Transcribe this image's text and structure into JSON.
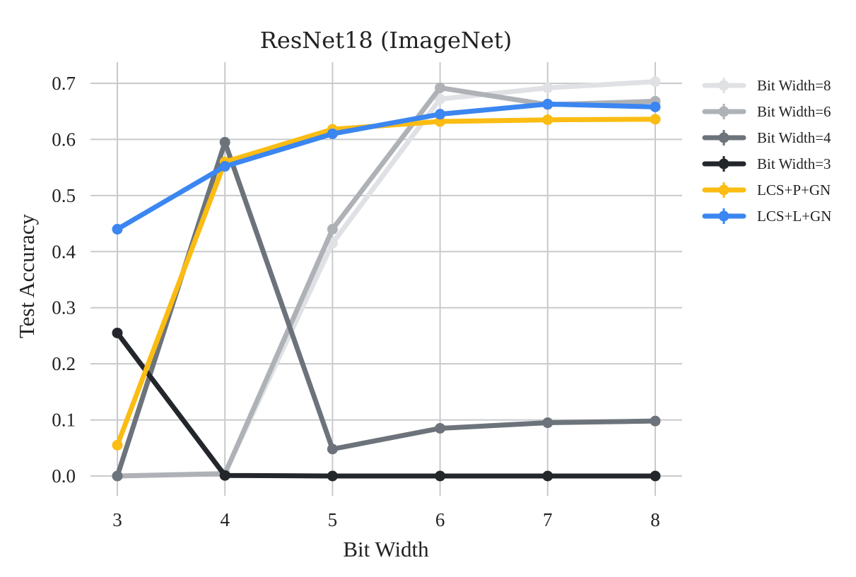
{
  "chart_data": {
    "type": "line",
    "title": "ResNet18 (ImageNet)",
    "xlabel": "Bit Width",
    "ylabel": "Test Accuracy",
    "x": [
      3,
      4,
      5,
      6,
      7,
      8
    ],
    "xticks": [
      "3",
      "4",
      "5",
      "6",
      "7",
      "8"
    ],
    "yticks": [
      "0.0",
      "0.1",
      "0.2",
      "0.3",
      "0.4",
      "0.5",
      "0.6",
      "0.7"
    ],
    "xlim": [
      3,
      8
    ],
    "ylim": [
      0,
      0.7
    ],
    "grid": true,
    "legend_position": "right",
    "series": [
      {
        "name": "Bit Width=8",
        "color": "#dfe1e4",
        "values": [
          0.0,
          0.005,
          0.415,
          0.672,
          0.692,
          0.703
        ]
      },
      {
        "name": "Bit Width=6",
        "color": "#aeb2b7",
        "values": [
          0.0,
          0.004,
          0.44,
          0.692,
          0.662,
          0.668
        ]
      },
      {
        "name": "Bit Width=4",
        "color": "#6c737b",
        "values": [
          0.0,
          0.595,
          0.048,
          0.085,
          0.095,
          0.098
        ]
      },
      {
        "name": "Bit Width=3",
        "color": "#23262b",
        "values": [
          0.255,
          0.001,
          0.0,
          0.0,
          0.0,
          0.0
        ]
      },
      {
        "name": "LCS+P+GN",
        "color": "#fbbc13",
        "values": [
          0.055,
          0.56,
          0.618,
          0.632,
          0.635,
          0.636
        ]
      },
      {
        "name": "LCS+L+GN",
        "color": "#3b86f0",
        "values": [
          0.44,
          0.552,
          0.61,
          0.645,
          0.663,
          0.658
        ]
      }
    ]
  }
}
